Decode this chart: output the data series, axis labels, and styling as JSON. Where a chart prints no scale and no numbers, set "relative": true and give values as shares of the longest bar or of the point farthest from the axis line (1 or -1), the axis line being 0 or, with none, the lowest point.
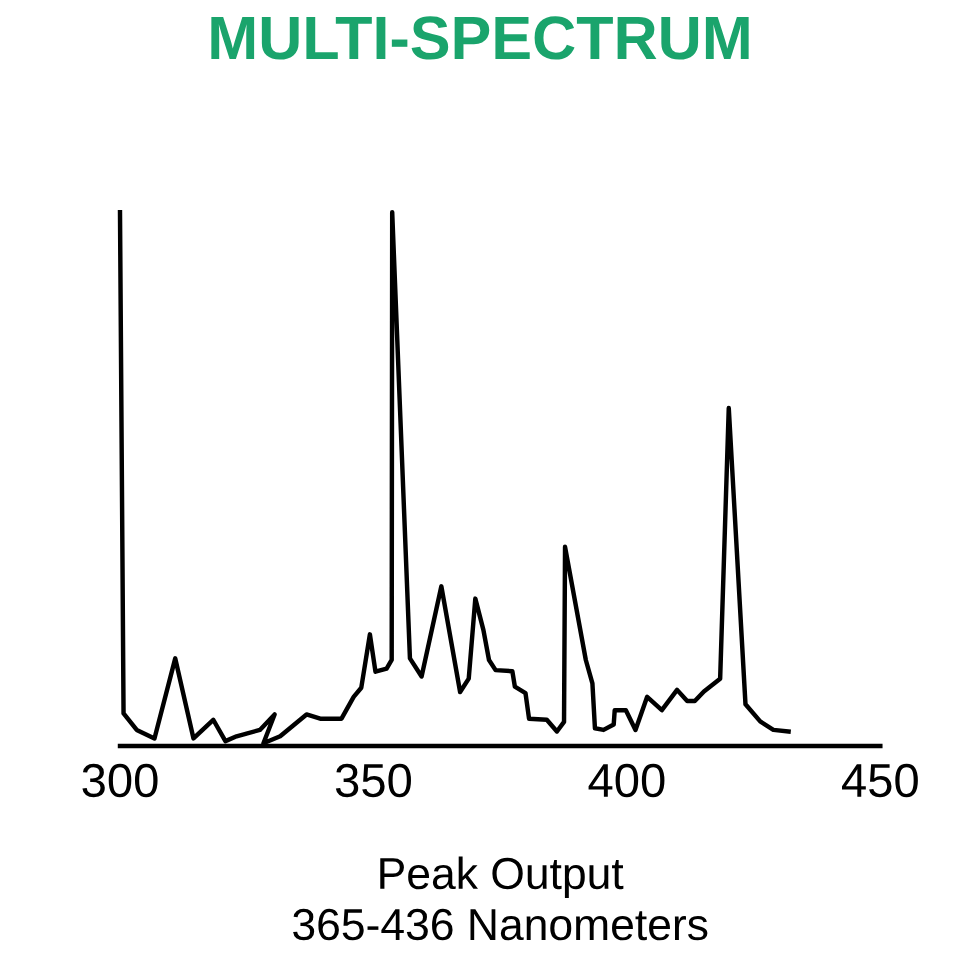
{
  "chart_data": {
    "type": "line",
    "title": "MULTI-SPECTRUM",
    "xlabel": "Peak Output\n365-436 Nanometers",
    "relative": true,
    "xlim": [
      300,
      450
    ],
    "xticks": [
      300,
      350,
      400,
      450
    ],
    "grid": false,
    "legend": false,
    "marker": "none",
    "line_style": "solid",
    "x": [
      300,
      300.7,
      303.3,
      306.8,
      310.9,
      314.5,
      318.4,
      320.8,
      323,
      327.6,
      330.5,
      328.3,
      331.6,
      336.8,
      339.5,
      343.7,
      346.1,
      347.6,
      349.3,
      350.4,
      352.6,
      353.6,
      353.7,
      357.2,
      359.5,
      363.4,
      367.1,
      368.8,
      370.1,
      371.7,
      372.8,
      374.1,
      377.4,
      377.9,
      380,
      380.7,
      384.2,
      386.2,
      387.6,
      387.8,
      391.9,
      393.2,
      393.7,
      395.4,
      397.4,
      397.6,
      399.8,
      401.7,
      404,
      406.9,
      409.9,
      411.9,
      413.4,
      415.2,
      418.4,
      420.1,
      423.4,
      426.3,
      428.9,
      431.9
    ],
    "series": [
      {
        "color": "#000000",
        "values": [
          1.0,
          0.061,
          0.03,
          0.014,
          0.164,
          0.014,
          0.049,
          0.009,
          0.018,
          0.03,
          0.059,
          0.005,
          0.018,
          0.059,
          0.051,
          0.051,
          0.092,
          0.109,
          0.209,
          0.139,
          0.145,
          0.161,
          1.0,
          0.164,
          0.13,
          0.299,
          0.101,
          0.126,
          0.276,
          0.217,
          0.161,
          0.142,
          0.14,
          0.111,
          0.099,
          0.051,
          0.049,
          0.027,
          0.045,
          0.373,
          0.161,
          0.117,
          0.033,
          0.03,
          0.04,
          0.067,
          0.067,
          0.03,
          0.092,
          0.067,
          0.105,
          0.084,
          0.084,
          0.102,
          0.126,
          0.633,
          0.078,
          0.046,
          0.03,
          0.027
        ]
      }
    ]
  }
}
